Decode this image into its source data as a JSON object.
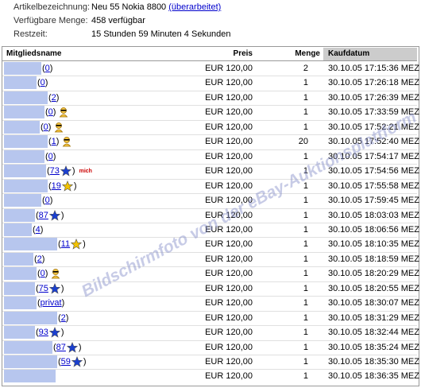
{
  "info": [
    {
      "label": "Artikelbezeichnung:",
      "value": "Neu 55 Nokia 8800",
      "link": "(überarbeitet)"
    },
    {
      "label": "Verfügbare Menge:",
      "value": "458 verfügbar"
    },
    {
      "label": "Restzeit:",
      "value": "15 Stunden 59 Minuten 4 Sekunden"
    }
  ],
  "table": {
    "headers": [
      "Mitgliedsname",
      "Preis",
      "Menge",
      "Kaufdatum"
    ],
    "open_paren": "(",
    "close_paren": ")",
    "me_label": "mich",
    "rows": [
      {
        "feedback": "0",
        "price": "EUR 120,00",
        "qty": "2",
        "date": "30.10.05 17:15:36 MEZ"
      },
      {
        "feedback": "0",
        "price": "EUR 120,00",
        "qty": "1",
        "date": "30.10.05 17:26:18 MEZ"
      },
      {
        "feedback": "2",
        "price": "EUR 120,00",
        "qty": "1",
        "date": "30.10.05 17:26:39 MEZ"
      },
      {
        "feedback": "0",
        "icon": "new",
        "price": "EUR 120,00",
        "qty": "1",
        "date": "30.10.05 17:33:59 MEZ"
      },
      {
        "feedback": "0",
        "icon": "new",
        "price": "EUR 120,00",
        "qty": "1",
        "date": "30.10.05 17:52:21 MEZ"
      },
      {
        "feedback": "1",
        "icon": "new",
        "price": "EUR 120,00",
        "qty": "20",
        "date": "30.10.05 17:52:40 MEZ"
      },
      {
        "feedback": "0",
        "price": "EUR 120,00",
        "qty": "1",
        "date": "30.10.05 17:54:17 MEZ"
      },
      {
        "feedback": "73",
        "icon": "star-blue",
        "me": true,
        "price": "EUR 120,00",
        "qty": "1",
        "date": "30.10.05 17:54:56 MEZ"
      },
      {
        "feedback": "19",
        "icon": "star-yellow",
        "price": "EUR 120,00",
        "qty": "1",
        "date": "30.10.05 17:55:58 MEZ"
      },
      {
        "feedback": "0",
        "price": "EUR 120,00",
        "qty": "1",
        "date": "30.10.05 17:59:45 MEZ"
      },
      {
        "feedback": "87",
        "icon": "star-blue",
        "price": "EUR 120,00",
        "qty": "1",
        "date": "30.10.05 18:03:03 MEZ"
      },
      {
        "feedback": "4",
        "price": "EUR 120,00",
        "qty": "1",
        "date": "30.10.05 18:06:56 MEZ"
      },
      {
        "feedback": "11",
        "icon": "star-yellow",
        "price": "EUR 120,00",
        "qty": "1",
        "date": "30.10.05 18:10:35 MEZ"
      },
      {
        "feedback": "2",
        "price": "EUR 120,00",
        "qty": "1",
        "date": "30.10.05 18:18:59 MEZ"
      },
      {
        "feedback": "0",
        "icon": "new",
        "price": "EUR 120,00",
        "qty": "1",
        "date": "30.10.05 18:20:29 MEZ"
      },
      {
        "feedback": "75",
        "icon": "star-blue",
        "price": "EUR 120,00",
        "qty": "1",
        "date": "30.10.05 18:20:55 MEZ"
      },
      {
        "feedback": "privat",
        "price": "EUR 120,00",
        "qty": "1",
        "date": "30.10.05 18:30:07 MEZ"
      },
      {
        "feedback": "2",
        "price": "EUR 120,00",
        "qty": "1",
        "date": "30.10.05 18:31:29 MEZ"
      },
      {
        "feedback": "93",
        "icon": "star-blue",
        "price": "EUR 120,00",
        "qty": "1",
        "date": "30.10.05 18:32:44 MEZ"
      },
      {
        "feedback": "87",
        "icon": "star-blue",
        "price": "EUR 120,00",
        "qty": "1",
        "date": "30.10.05 18:35:24 MEZ"
      },
      {
        "feedback": "59",
        "icon": "star-blue",
        "price": "EUR 120,00",
        "qty": "1",
        "date": "30.10.05 18:35:30 MEZ"
      },
      {
        "price": "EUR 120,00",
        "qty": "1",
        "date": "30.10.05 18:36:35 MEZ"
      }
    ]
  },
  "watermark": "Bildschirmfoto von der eBay-Auktionsplattform"
}
